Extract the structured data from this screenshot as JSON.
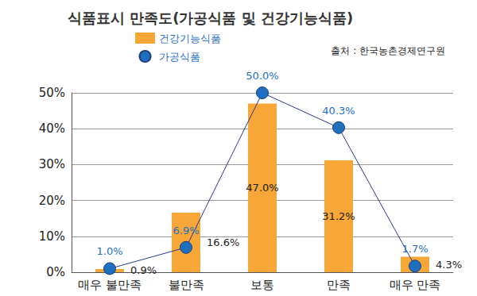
{
  "chart_data": {
    "type": "bar",
    "title": "식품표시 만족도(가공식품 및 건강기능식품)",
    "annotations": [
      "출처 : 한국농촌경제연구원"
    ],
    "categories": [
      "매우 불만족",
      "불만족",
      "보통",
      "만족",
      "매우 만족"
    ],
    "series": [
      {
        "name": "건강기능식품",
        "type": "bar",
        "color": "#f7a738",
        "values": [
          0.9,
          16.6,
          47.0,
          31.2,
          4.3
        ],
        "value_labels": [
          "0.9%",
          "16.6%",
          "47.0%",
          "31.2%",
          "4.3%"
        ]
      },
      {
        "name": "가공식품",
        "type": "line",
        "color": "#1f6fc0",
        "marker": "circle",
        "values": [
          1.0,
          6.9,
          50.0,
          40.3,
          1.7
        ],
        "value_labels": [
          "1.0%",
          "6.9%",
          "50.0%",
          "40.3%",
          "1.7%"
        ]
      }
    ],
    "ylim": [
      0,
      50
    ],
    "yticks": [
      {
        "value": 0,
        "label": "0%"
      },
      {
        "value": 10,
        "label": "10%"
      },
      {
        "value": 20,
        "label": "20%"
      },
      {
        "value": 30,
        "label": "30%"
      },
      {
        "value": 40,
        "label": "40%"
      },
      {
        "value": 50,
        "label": "50%"
      }
    ],
    "grid": true,
    "legend": "upper left",
    "data_labels": true
  }
}
